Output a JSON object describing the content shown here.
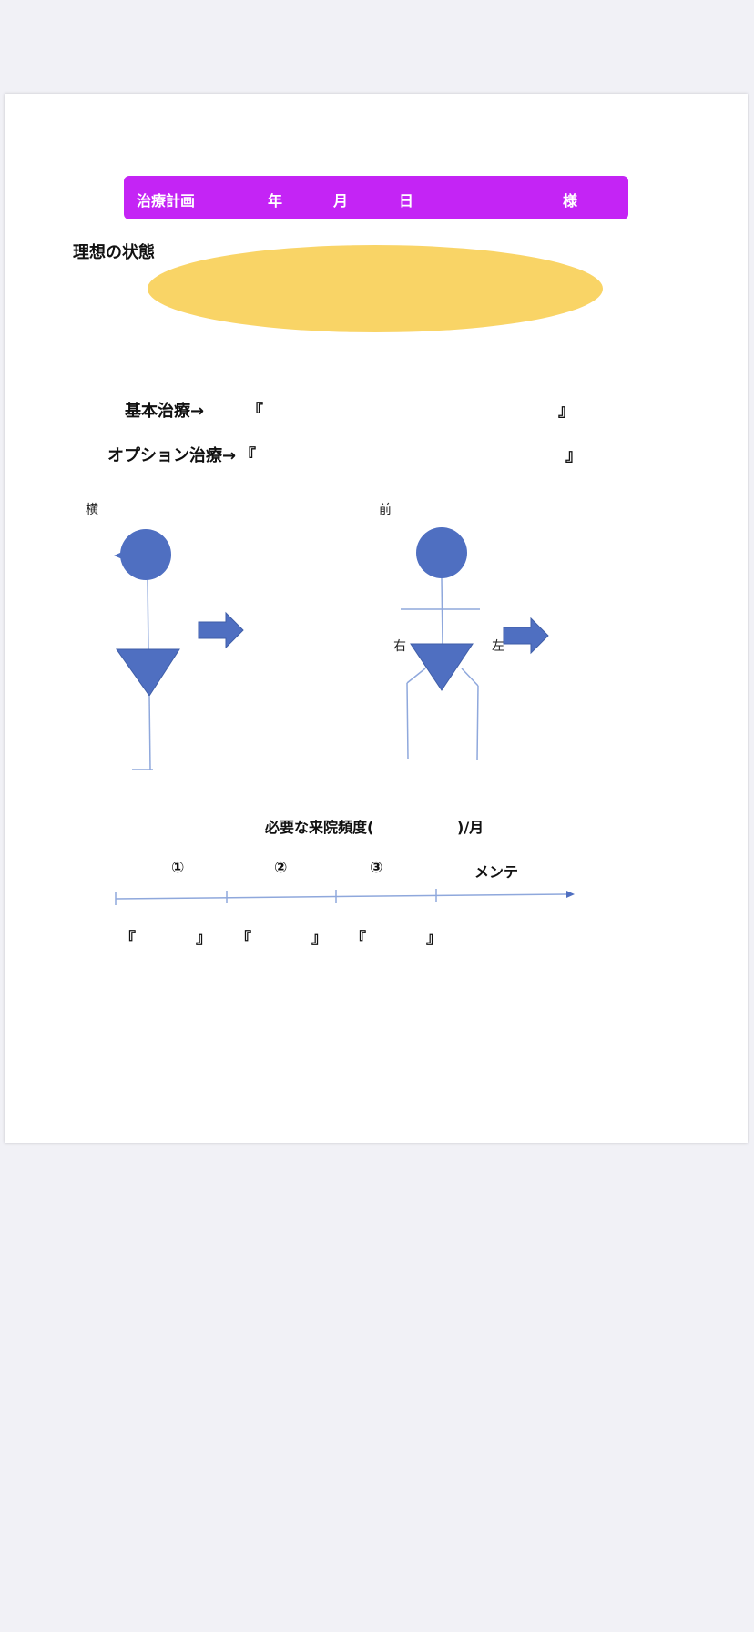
{
  "header": {
    "title": "治療計画",
    "year": "年",
    "month": "月",
    "day": "日",
    "suffix": "様"
  },
  "ideal": {
    "label": "理想の状態"
  },
  "treatment": {
    "basic_label": "基本治療→",
    "basic_open": "『",
    "basic_close": "』",
    "option_label": "オプション治療→",
    "option_open": "『",
    "option_close": "』"
  },
  "posture": {
    "side_label": "横",
    "front_label": "前",
    "right_label": "右",
    "left_label": "左"
  },
  "visit": {
    "frequency_prefix": "必要な来院頻度(",
    "frequency_suffix": ")/月",
    "stage1": "①",
    "stage2": "②",
    "stage3": "③",
    "maintenance": "メンテ",
    "bracket_open": "『",
    "bracket_close": "』"
  },
  "colors": {
    "header_bg": "#c424f5",
    "ellipse": "#f9d466",
    "figure_blue": "#4f6fc1",
    "line_blue": "#8fa8dc",
    "page_bg": "#f1f1f6"
  }
}
